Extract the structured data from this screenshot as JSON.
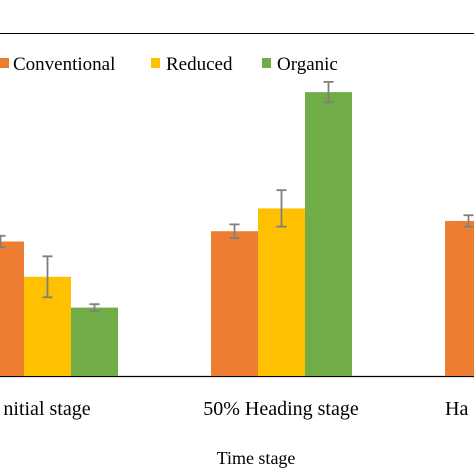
{
  "chart_data": {
    "type": "bar",
    "title": "",
    "xlabel": "Time stage",
    "ylabel": "",
    "categories": [
      "Initial stage",
      "50% Heading stage",
      "Harvest stage"
    ],
    "tick_labels_visible": [
      "nitial stage",
      "50% Heading stage",
      "Ha"
    ],
    "series": [
      {
        "name": "Conventional",
        "color": "#ED7D31",
        "values": [
          1.18,
          1.27,
          1.36
        ],
        "errors": [
          0.05,
          0.06,
          0.05
        ]
      },
      {
        "name": "Reduced",
        "color": "#FFC000",
        "values": [
          0.87,
          1.47,
          null
        ],
        "errors": [
          0.18,
          0.16,
          null
        ]
      },
      {
        "name": "Organic",
        "color": "#70AD47",
        "values": [
          0.6,
          2.49,
          null
        ],
        "errors": [
          0.03,
          0.09,
          null
        ]
      }
    ],
    "ylim": [
      0,
      3.0
    ],
    "legend_position": "top",
    "grid": false,
    "error_bars": true
  }
}
